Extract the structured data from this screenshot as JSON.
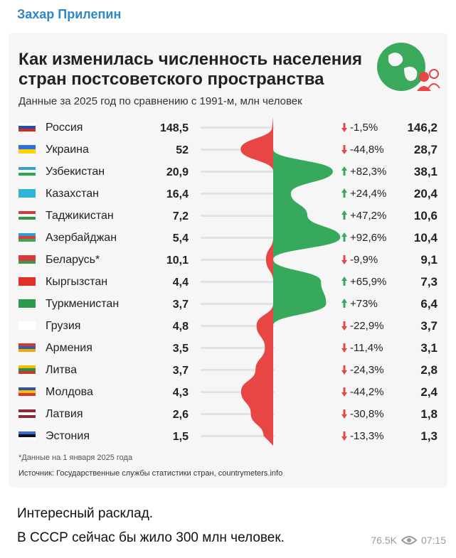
{
  "post": {
    "channel": "Захар Прилепин",
    "message_lines": [
      "Интересный расклад.",
      "В СССР сейчас бы жило 300 млн человек."
    ],
    "views": "76.5K",
    "time": "07:15"
  },
  "infographic": {
    "title_lines": [
      "Как изменилась численность населения",
      "стран постсоветского пространства"
    ],
    "subtitle": "Данные за 2025 год по сравнению с 1991-м, млн человек",
    "footnote": "*Данные на 1 января 2025 года",
    "source": "Источник: Государственные службы статистики стран, countrymeters.info"
  },
  "chart_data": {
    "type": "table",
    "columns": [
      "country",
      "1991",
      "change",
      "2025"
    ],
    "colors": {
      "increase": "#37a95c",
      "decrease": "#e84545"
    },
    "rows": [
      {
        "country": "Россия",
        "v1991": "148,5",
        "change": "-1,5%",
        "pct": -1.5,
        "v2025": "146,2",
        "flag": [
          "#ffffff",
          "#1c4fb5",
          "#d52b1e"
        ]
      },
      {
        "country": "Украина",
        "v1991": "52",
        "change": "-44,8%",
        "pct": -44.8,
        "v2025": "28,7",
        "flag": [
          "#2f6fd6",
          "#ffd400"
        ]
      },
      {
        "country": "Узбекистан",
        "v1991": "20,9",
        "change": "+82,3%",
        "pct": 82.3,
        "v2025": "38,1",
        "flag": [
          "#34a0d8",
          "#ffffff",
          "#2ea84e"
        ]
      },
      {
        "country": "Казахстан",
        "v1991": "16,4",
        "change": "+24,4%",
        "pct": 24.4,
        "v2025": "20,4",
        "flag": [
          "#2fb5d6"
        ]
      },
      {
        "country": "Таджикистан",
        "v1991": "7,2",
        "change": "+47,2%",
        "pct": 47.2,
        "v2025": "10,6",
        "flag": [
          "#d63a2e",
          "#ffffff",
          "#2e9a46"
        ]
      },
      {
        "country": "Азербайджан",
        "v1991": "5,4",
        "change": "+92,6%",
        "pct": 92.6,
        "v2025": "10,4",
        "flag": [
          "#2f9fd6",
          "#e03a3a",
          "#3aa84e"
        ]
      },
      {
        "country": "Беларусь*",
        "v1991": "10,1",
        "change": "-9,9%",
        "pct": -9.9,
        "v2025": "9,1",
        "flag": [
          "#d63a3a",
          "#d63a3a",
          "#3a9a4e"
        ]
      },
      {
        "country": "Кыргызстан",
        "v1991": "4,4",
        "change": "+65,9%",
        "pct": 65.9,
        "v2025": "7,3",
        "flag": [
          "#e0302a"
        ]
      },
      {
        "country": "Туркменистан",
        "v1991": "3,7",
        "change": "+73%",
        "pct": 73,
        "v2025": "6,4",
        "flag": [
          "#2e9a4e"
        ]
      },
      {
        "country": "Грузия",
        "v1991": "4,8",
        "change": "-22,9%",
        "pct": -22.9,
        "v2025": "3,7",
        "flag": [
          "#ffffff"
        ]
      },
      {
        "country": "Армения",
        "v1991": "3,5",
        "change": "-11,4%",
        "pct": -11.4,
        "v2025": "3,1",
        "flag": [
          "#d63a2e",
          "#2f5fb5",
          "#f2a900"
        ]
      },
      {
        "country": "Литва",
        "v1991": "3,7",
        "change": "-24,3%",
        "pct": -24.3,
        "v2025": "2,8",
        "flag": [
          "#f2c000",
          "#2e8a4e",
          "#c63a2e"
        ]
      },
      {
        "country": "Молдова",
        "v1991": "4,3",
        "change": "-44,2%",
        "pct": -44.2,
        "v2025": "2,4",
        "flag": [
          "#2f4fb5",
          "#f2c000",
          "#d63a2e"
        ]
      },
      {
        "country": "Латвия",
        "v1991": "2,6",
        "change": "-30,8%",
        "pct": -30.8,
        "v2025": "1,8",
        "flag": [
          "#8a2a3a",
          "#ffffff",
          "#8a2a3a"
        ]
      },
      {
        "country": "Эстония",
        "v1991": "1,5",
        "change": "-13,3%",
        "pct": -13.3,
        "v2025": "1,3",
        "flag": [
          "#2f6fd6",
          "#111111",
          "#ffffff"
        ]
      }
    ]
  }
}
